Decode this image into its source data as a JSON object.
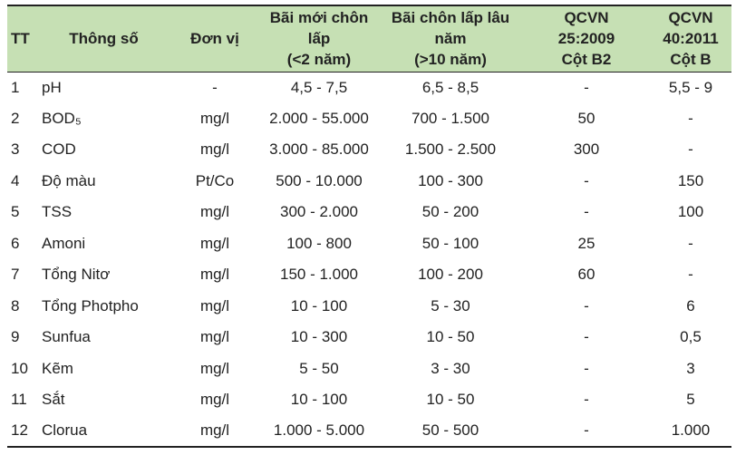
{
  "table": {
    "header": [
      [
        "TT"
      ],
      [
        "Thông số"
      ],
      [
        "Đơn vị"
      ],
      [
        "Bãi mới chôn",
        "lấp",
        "(<2 năm)"
      ],
      [
        "Bãi chôn lấp lâu",
        "năm",
        "(>10 năm)"
      ],
      [
        "QCVN",
        "25:2009",
        "Cột B2"
      ],
      [
        "QCVN",
        "40:2011",
        "Cột B"
      ]
    ],
    "rows": [
      [
        "1",
        "pH",
        "-",
        "4,5 - 7,5",
        "6,5 - 8,5",
        "-",
        "5,5 - 9"
      ],
      [
        "2",
        "BOD₅",
        "mg/l",
        "2.000 - 55.000",
        "700 - 1.500",
        "50",
        "-"
      ],
      [
        "3",
        "COD",
        "mg/l",
        "3.000 - 85.000",
        "1.500 - 2.500",
        "300",
        "-"
      ],
      [
        "4",
        "Độ màu",
        "Pt/Co",
        "500 - 10.000",
        "100 - 300",
        "-",
        "150"
      ],
      [
        "5",
        "TSS",
        "mg/l",
        "300 - 2.000",
        "50 - 200",
        "-",
        "100"
      ],
      [
        "6",
        "Amoni",
        "mg/l",
        "100 - 800",
        "50 - 100",
        "25",
        "-"
      ],
      [
        "7",
        "Tổng Nitơ",
        "mg/l",
        "150 - 1.000",
        "100 - 200",
        "60",
        "-"
      ],
      [
        "8",
        "Tổng Photpho",
        "mg/l",
        "10 - 100",
        "5 - 30",
        "-",
        "6"
      ],
      [
        "9",
        "Sunfua",
        "mg/l",
        "10 - 300",
        "10 - 50",
        "-",
        "0,5"
      ],
      [
        "10",
        "Kẽm",
        "mg/l",
        "5 - 50",
        "3 - 30",
        "-",
        "3"
      ],
      [
        "11",
        "Sắt",
        "mg/l",
        "10 - 100",
        "10 - 50",
        "-",
        "5"
      ],
      [
        "12",
        "Clorua",
        "mg/l",
        "1.000 - 5.000",
        "50 - 500",
        "-",
        "1.000"
      ]
    ]
  }
}
